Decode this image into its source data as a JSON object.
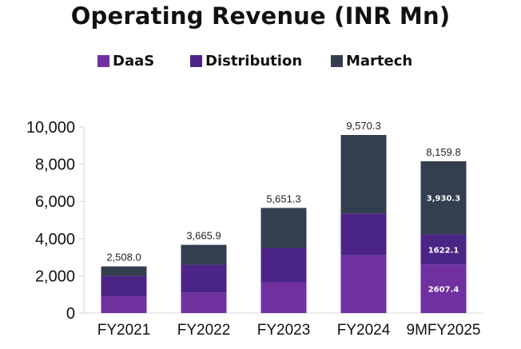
{
  "chart_data": {
    "type": "bar",
    "stacked": true,
    "title": "Operating Revenue (INR Mn)",
    "categories": [
      "FY2021",
      "FY2022",
      "FY2023",
      "FY2024",
      "9MFY2025"
    ],
    "series": [
      {
        "name": "DaaS",
        "color": "#7030A0",
        "values": [
          900,
          1100,
          1650,
          3100,
          2607.4
        ]
      },
      {
        "name": "Distribution",
        "color": "#4B2585",
        "values": [
          1100,
          1500,
          1850,
          2250,
          1622.1
        ]
      },
      {
        "name": "Martech",
        "color": "#333F4F",
        "values": [
          508.0,
          1065.9,
          2151.3,
          4220.3,
          3930.3
        ]
      }
    ],
    "totals": [
      2508.0,
      3665.9,
      5651.3,
      9570.3,
      8159.8
    ],
    "total_labels": [
      "2,508.0",
      "3,665.9",
      "5,651.3",
      "9,570.3",
      "8,159.8"
    ],
    "segment_labels": [
      {
        "category": "9MFY2025",
        "series": "DaaS",
        "text": "2607.4"
      },
      {
        "category": "9MFY2025",
        "series": "Distribution",
        "text": "1622.1"
      },
      {
        "category": "9MFY2025",
        "series": "Martech",
        "text": "3,930.3"
      }
    ],
    "ylim": [
      0,
      10000
    ],
    "yticks": [
      0,
      2000,
      4000,
      6000,
      8000,
      10000
    ],
    "ytick_labels": [
      "0",
      "2,000",
      "4,000",
      "6,000",
      "8,000",
      "10,000"
    ],
    "xlabel": "",
    "ylabel": "",
    "grid": false,
    "legend_position": "top-center"
  }
}
